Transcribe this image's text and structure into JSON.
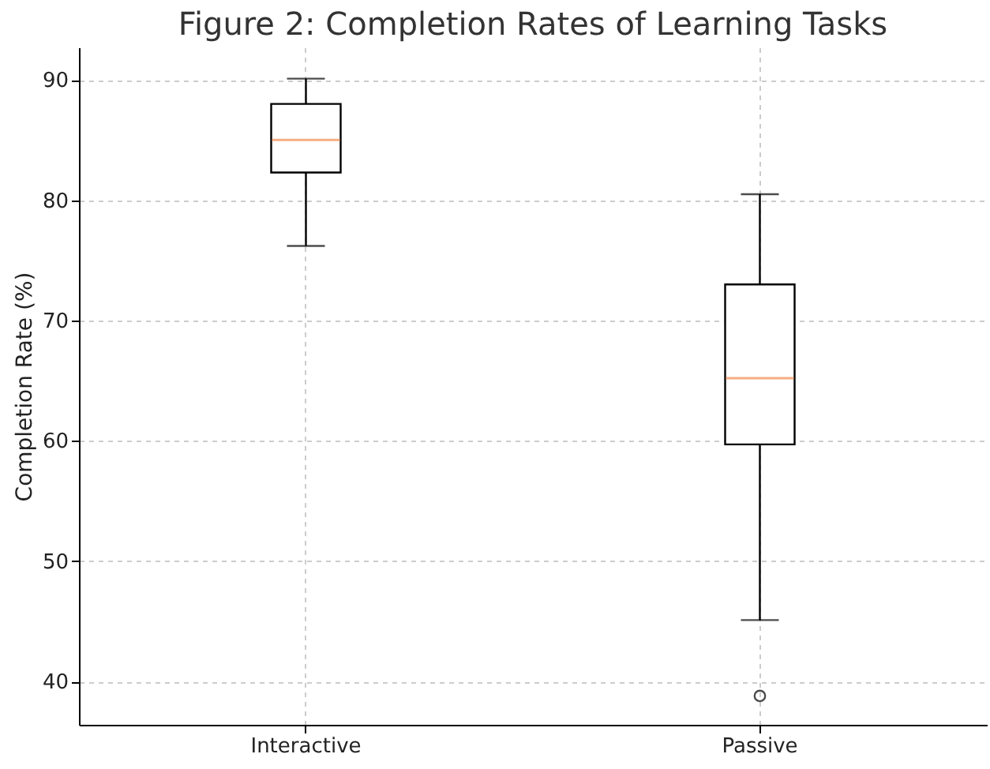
{
  "chart_data": {
    "type": "box",
    "title": "Figure 2: Completion Rates of Learning Tasks",
    "ylabel": "Completion Rate (%)",
    "categories": [
      "Interactive",
      "Passive"
    ],
    "boxes": [
      {
        "low": 76.2,
        "q1": 82.3,
        "median": 85.0,
        "q3": 88.0,
        "high": 90.1
      },
      {
        "low": 45.1,
        "q1": 59.7,
        "median": 65.2,
        "q3": 73.0,
        "high": 80.5,
        "outliers": [
          38.8
        ]
      }
    ],
    "ylim": [
      36.4,
      92.7
    ],
    "yticks": [
      40,
      50,
      60,
      70,
      80,
      90
    ],
    "grid": true
  }
}
